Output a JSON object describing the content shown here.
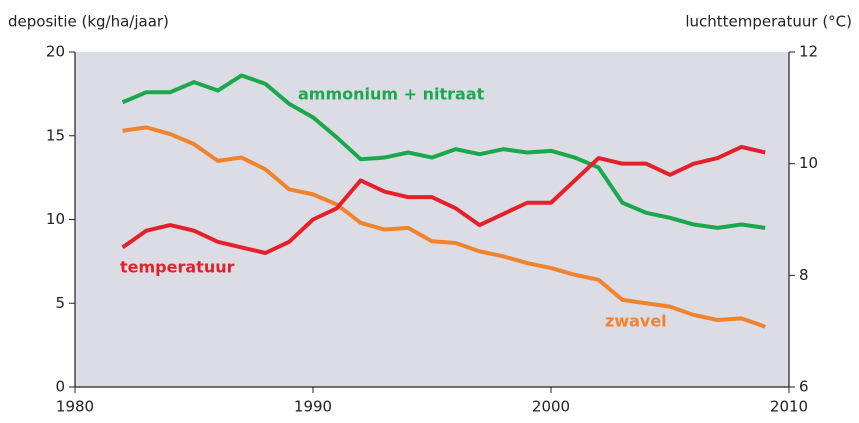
{
  "chart_data": {
    "type": "line",
    "ylabel": "depositie (kg/ha/jaar)",
    "y2label": "luchttemperatuur (°C)",
    "x": [
      1982,
      1983,
      1984,
      1985,
      1986,
      1987,
      1988,
      1989,
      1990,
      1991,
      1992,
      1993,
      1994,
      1995,
      1996,
      1997,
      1998,
      1999,
      2000,
      2001,
      2002,
      2003,
      2004,
      2005,
      2006,
      2007,
      2008,
      2009
    ],
    "series": [
      {
        "name": "ammonium + nitraat",
        "color": "#1ba84c",
        "axis": "y",
        "values": [
          17.0,
          17.6,
          17.6,
          18.2,
          17.7,
          18.6,
          18.1,
          16.9,
          16.1,
          14.9,
          13.6,
          13.7,
          14.0,
          13.7,
          14.2,
          13.9,
          14.2,
          14.0,
          14.1,
          13.7,
          13.1,
          11.0,
          10.4,
          10.1,
          9.7,
          9.5,
          9.7,
          9.5
        ]
      },
      {
        "name": "zwavel",
        "color": "#f0832b",
        "axis": "y",
        "values": [
          15.3,
          15.5,
          15.1,
          14.5,
          13.5,
          13.7,
          13.0,
          11.8,
          11.5,
          10.9,
          9.8,
          9.4,
          9.5,
          8.7,
          8.6,
          8.1,
          7.8,
          7.4,
          7.1,
          6.7,
          6.4,
          5.2,
          5.0,
          4.8,
          4.3,
          4.0,
          4.1,
          3.6
        ]
      },
      {
        "name": "temperatuur",
        "color": "#e4202b",
        "axis": "y2",
        "values": [
          8.5,
          8.8,
          8.9,
          8.8,
          8.6,
          8.5,
          8.4,
          8.6,
          9.0,
          9.2,
          9.7,
          9.5,
          9.4,
          9.4,
          9.2,
          8.9,
          9.1,
          9.3,
          9.3,
          9.7,
          10.1,
          10.0,
          10.0,
          9.8,
          10.0,
          10.1,
          10.3,
          10.2
        ]
      }
    ],
    "xlim": [
      1980,
      2010
    ],
    "xticks": [
      1980,
      1990,
      2000,
      2010
    ],
    "ylim": [
      0,
      20
    ],
    "yticks": [
      0,
      5,
      10,
      15,
      20
    ],
    "y2lim": [
      6,
      12
    ],
    "y2ticks": [
      6,
      8,
      10,
      12
    ]
  }
}
